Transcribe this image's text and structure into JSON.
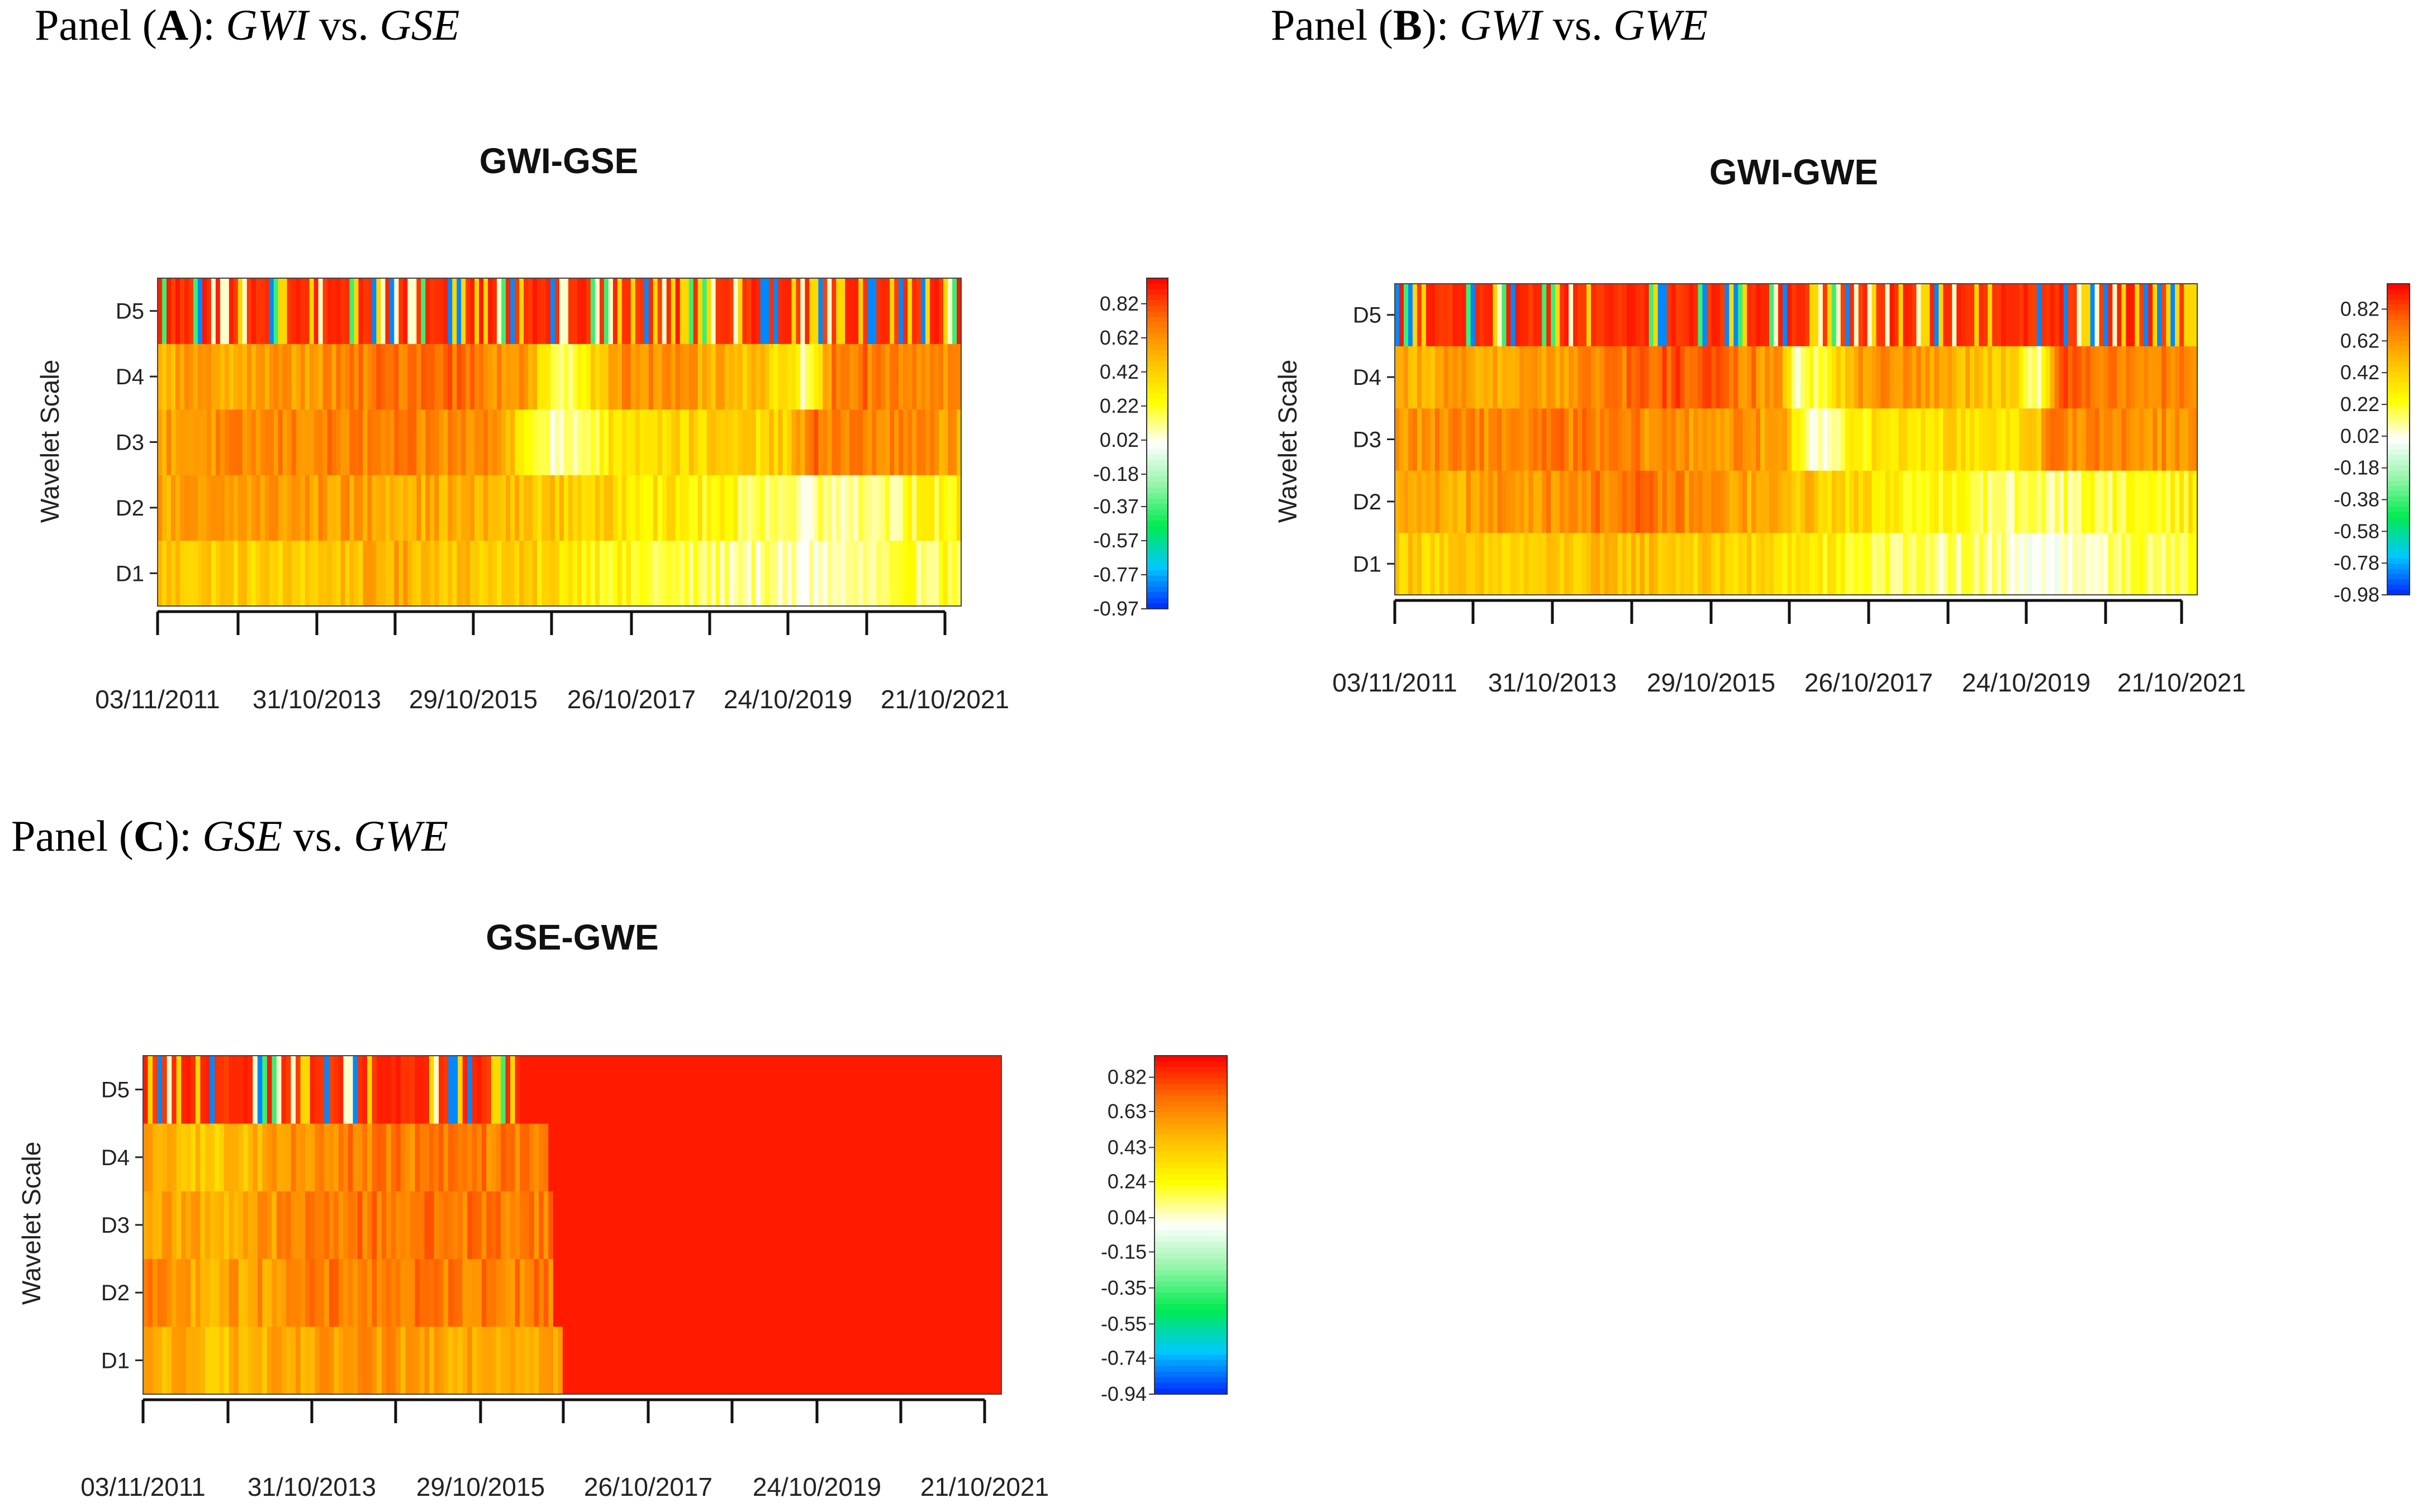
{
  "panels": [
    {
      "letter": "A",
      "v1": "GWI",
      "v2": "GSE"
    },
    {
      "letter": "B",
      "v1": "GWI",
      "v2": "GWE"
    },
    {
      "letter": "C",
      "v1": "GSE",
      "v2": "GWE"
    }
  ],
  "caption_prefix": "Panel (",
  "caption_mid": "): ",
  "caption_vs": " vs. ",
  "chart_data": [
    {
      "type": "heatmap",
      "title": "GWI-GSE",
      "ylabel": "Wavelet Scale",
      "rows": [
        "D1",
        "D2",
        "D3",
        "D4",
        "D5"
      ],
      "x_tick_labels": [
        "03/11/2011",
        "31/10/2013",
        "29/10/2015",
        "26/10/2017",
        "24/10/2019",
        "21/10/2021"
      ],
      "colorbar_ticks": [
        "0.82",
        "0.62",
        "0.42",
        "0.22",
        "0.02",
        "-0.18",
        "-0.37",
        "-0.57",
        "-0.77",
        "-0.97"
      ],
      "colorbar_range": [
        -0.97,
        0.97
      ],
      "row_profiles": {
        "D1": [
          [
            0,
            0.48
          ],
          [
            0.15,
            0.42
          ],
          [
            0.3,
            0.55
          ],
          [
            0.5,
            0.38
          ],
          [
            0.62,
            0.18
          ],
          [
            0.72,
            0.12
          ],
          [
            0.8,
            0.05
          ],
          [
            0.9,
            0.1
          ],
          [
            1,
            0.25
          ]
        ],
        "D2": [
          [
            0,
            0.55
          ],
          [
            0.15,
            0.62
          ],
          [
            0.3,
            0.58
          ],
          [
            0.5,
            0.45
          ],
          [
            0.62,
            0.35
          ],
          [
            0.8,
            0.12
          ],
          [
            0.9,
            0.15
          ],
          [
            1,
            0.3
          ]
        ],
        "D3": [
          [
            0,
            0.6
          ],
          [
            0.2,
            0.68
          ],
          [
            0.42,
            0.65
          ],
          [
            0.5,
            0.02
          ],
          [
            0.58,
            0.4
          ],
          [
            0.78,
            0.42
          ],
          [
            0.82,
            0.72
          ],
          [
            1,
            0.6
          ]
        ],
        "D4": [
          [
            0,
            0.55
          ],
          [
            0.2,
            0.62
          ],
          [
            0.35,
            0.8
          ],
          [
            0.46,
            0.6
          ],
          [
            0.5,
            0.05
          ],
          [
            0.58,
            0.7
          ],
          [
            0.78,
            0.4
          ],
          [
            0.81,
            0.05
          ],
          [
            0.84,
            0.75
          ],
          [
            1,
            0.65
          ]
        ],
        "D5": "oscillating"
      }
    },
    {
      "type": "heatmap",
      "title": "GWI-GWE",
      "ylabel": "Wavelet Scale",
      "rows": [
        "D1",
        "D2",
        "D3",
        "D4",
        "D5"
      ],
      "x_tick_labels": [
        "03/11/2011",
        "31/10/2013",
        "29/10/2015",
        "26/10/2017",
        "24/10/2019",
        "21/10/2021"
      ],
      "colorbar_ticks": [
        "0.82",
        "0.62",
        "0.42",
        "0.22",
        "0.02",
        "-0.18",
        "-0.38",
        "-0.58",
        "-0.78",
        "-0.98"
      ],
      "colorbar_range": [
        -0.98,
        0.98
      ],
      "row_profiles": {
        "D1": [
          [
            0,
            0.45
          ],
          [
            0.15,
            0.4
          ],
          [
            0.3,
            0.5
          ],
          [
            0.5,
            0.35
          ],
          [
            0.62,
            0.15
          ],
          [
            0.75,
            0.1
          ],
          [
            0.82,
            0.02
          ],
          [
            0.9,
            0.1
          ],
          [
            1,
            0.25
          ]
        ],
        "D2": [
          [
            0,
            0.5
          ],
          [
            0.15,
            0.62
          ],
          [
            0.3,
            0.72
          ],
          [
            0.42,
            0.6
          ],
          [
            0.6,
            0.35
          ],
          [
            0.78,
            0.12
          ],
          [
            0.9,
            0.2
          ],
          [
            1,
            0.3
          ]
        ],
        "D3": [
          [
            0,
            0.62
          ],
          [
            0.2,
            0.7
          ],
          [
            0.48,
            0.6
          ],
          [
            0.52,
            0.05
          ],
          [
            0.6,
            0.35
          ],
          [
            0.8,
            0.4
          ],
          [
            0.82,
            0.7
          ],
          [
            1,
            0.62
          ]
        ],
        "D4": [
          [
            0,
            0.55
          ],
          [
            0.2,
            0.6
          ],
          [
            0.36,
            0.82
          ],
          [
            0.48,
            0.62
          ],
          [
            0.5,
            0.05
          ],
          [
            0.6,
            0.7
          ],
          [
            0.78,
            0.42
          ],
          [
            0.8,
            0.05
          ],
          [
            0.83,
            0.78
          ],
          [
            1,
            0.65
          ]
        ],
        "D5": "oscillating"
      }
    },
    {
      "type": "heatmap",
      "title": "GSE-GWE",
      "ylabel": "Wavelet Scale",
      "rows": [
        "D1",
        "D2",
        "D3",
        "D4",
        "D5"
      ],
      "x_tick_labels": [
        "03/11/2011",
        "31/10/2013",
        "29/10/2015",
        "26/10/2017",
        "24/10/2019",
        "21/10/2021"
      ],
      "colorbar_ticks": [
        "0.82",
        "0.63",
        "0.43",
        "0.24",
        "0.04",
        "-0.15",
        "-0.35",
        "-0.55",
        "-0.74",
        "-0.94"
      ],
      "colorbar_range": [
        -0.94,
        0.94
      ],
      "saturated_after_fraction": {
        "D5": 0.44,
        "D4": 0.47,
        "D3": 0.48,
        "D2": 0.48,
        "D1": 0.49
      },
      "saturated_value": 0.94,
      "row_profiles": {
        "D1": [
          [
            0,
            0.55
          ],
          [
            0.2,
            0.5
          ],
          [
            0.4,
            0.55
          ],
          [
            0.49,
            0.6
          ]
        ],
        "D2": [
          [
            0,
            0.7
          ],
          [
            0.15,
            0.55
          ],
          [
            0.3,
            0.62
          ],
          [
            0.48,
            0.7
          ]
        ],
        "D3": [
          [
            0,
            0.6
          ],
          [
            0.2,
            0.55
          ],
          [
            0.35,
            0.65
          ],
          [
            0.48,
            0.72
          ]
        ],
        "D4": [
          [
            0,
            0.6
          ],
          [
            0.15,
            0.45
          ],
          [
            0.3,
            0.55
          ],
          [
            0.47,
            0.7
          ]
        ],
        "D5": "oscillating"
      }
    }
  ]
}
